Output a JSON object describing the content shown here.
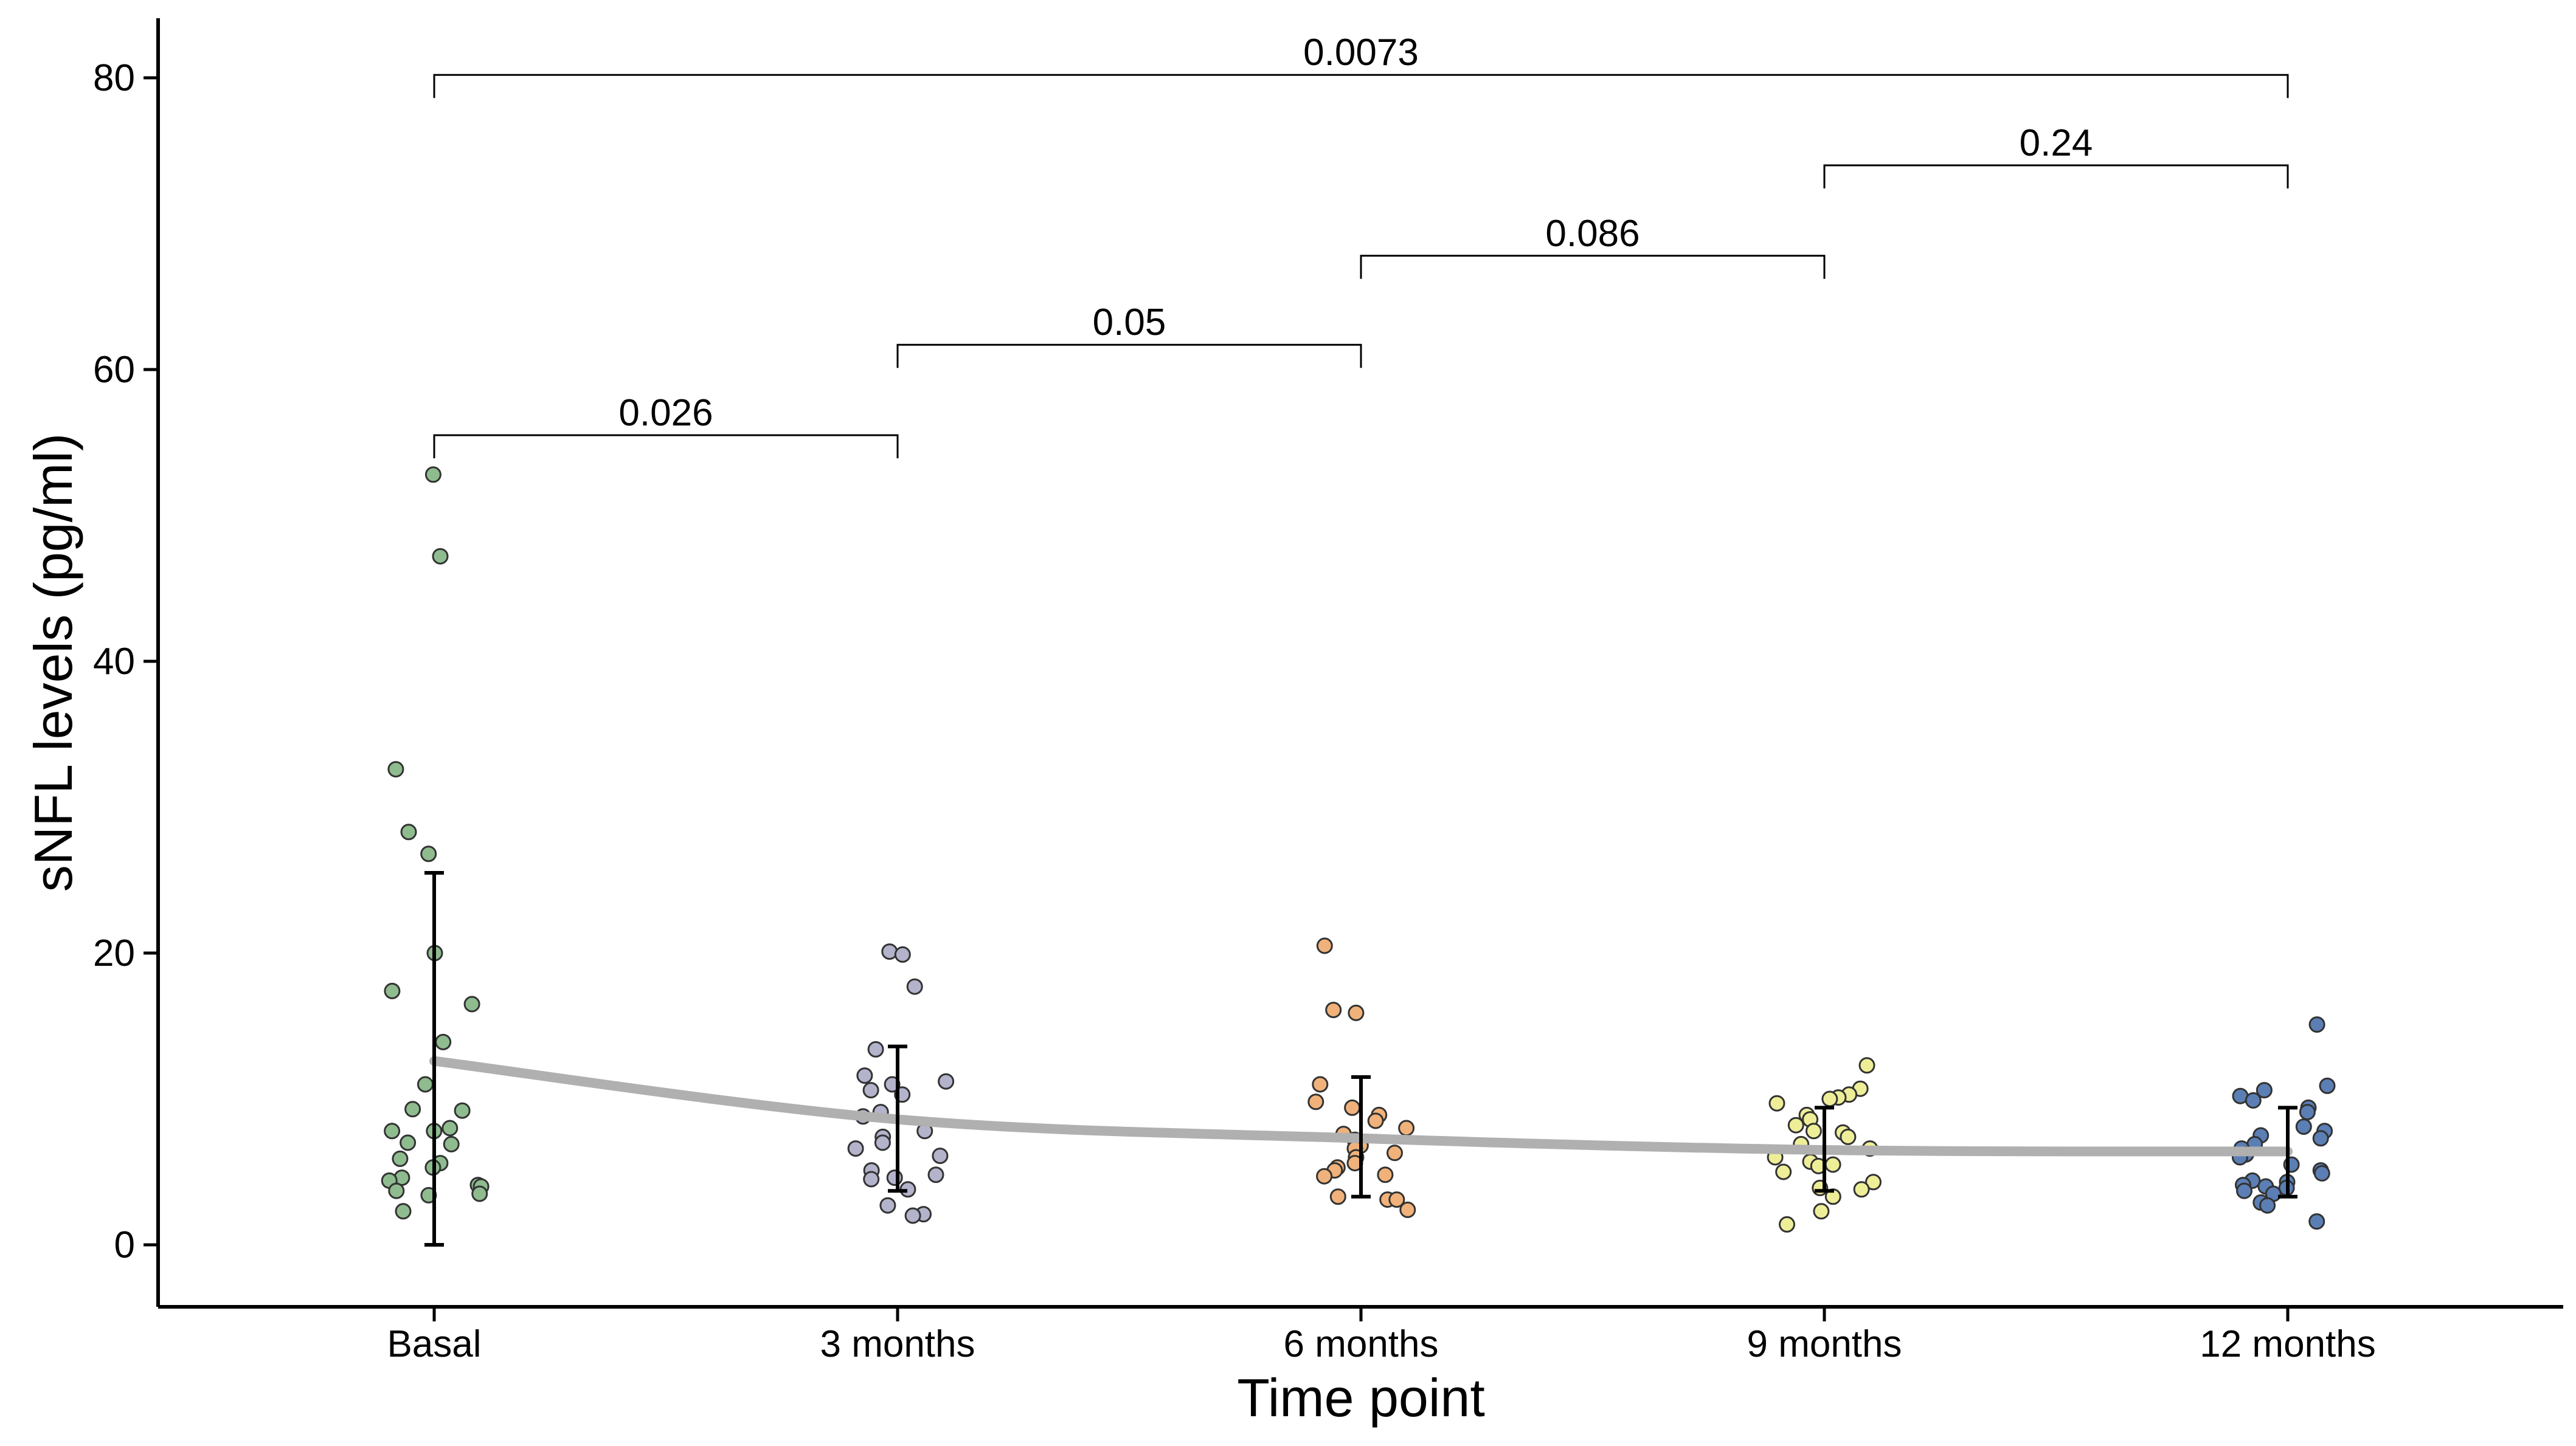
{
  "chart_data": {
    "type": "scatter",
    "title": "",
    "xlabel": "Time point",
    "ylabel": "sNFL levels (pg/ml)",
    "ylim": [
      -4,
      84
    ],
    "yticks": [
      0,
      20,
      40,
      60,
      80
    ],
    "categories": [
      "Basal",
      "3 months",
      "6 months",
      "9 months",
      "12 months"
    ],
    "colors": [
      "#8fbc8f",
      "#b3b3cc",
      "#f0b27a",
      "#eeee99",
      "#5b7fb5"
    ],
    "trend_color": "#b0b0b0",
    "trend": [
      12.6,
      8.6,
      7.3,
      6.5,
      6.4
    ],
    "error_bars": [
      {
        "low": 0.0,
        "high": 25.5
      },
      {
        "low": 3.7,
        "high": 13.6
      },
      {
        "low": 3.3,
        "high": 11.5
      },
      {
        "low": 3.7,
        "high": 9.4
      },
      {
        "low": 3.3,
        "high": 9.4
      }
    ],
    "points": [
      [
        52.8,
        47.2,
        32.6,
        28.3,
        26.8,
        20.0,
        17.4,
        16.5,
        13.9,
        11.0,
        9.3,
        9.2,
        8.0,
        7.8,
        7.8,
        7.0,
        6.9,
        5.9,
        5.6,
        5.3,
        4.6,
        4.4,
        4.1,
        4.0,
        3.7,
        3.4,
        3.5,
        2.3
      ],
      [
        20.1,
        19.9,
        17.7,
        13.4,
        11.6,
        11.2,
        11.0,
        10.6,
        10.3,
        9.1,
        8.8,
        7.8,
        7.4,
        7.0,
        6.6,
        6.1,
        5.1,
        4.8,
        4.6,
        4.5,
        3.8,
        2.7,
        2.1,
        2.0
      ],
      [
        20.5,
        16.1,
        15.9,
        11.0,
        9.8,
        9.4,
        8.9,
        8.5,
        8.0,
        7.6,
        7.2,
        6.8,
        6.6,
        6.3,
        6.0,
        5.6,
        5.3,
        5.1,
        4.8,
        4.7,
        3.3,
        3.1,
        3.1,
        2.4
      ],
      [
        12.3,
        10.7,
        10.3,
        10.1,
        10.0,
        9.7,
        8.9,
        8.6,
        8.2,
        7.8,
        7.7,
        7.4,
        6.9,
        6.6,
        6.0,
        5.7,
        5.5,
        5.4,
        5.0,
        4.3,
        3.9,
        3.8,
        3.3,
        2.3,
        1.4
      ],
      [
        15.1,
        10.9,
        10.6,
        10.2,
        9.9,
        9.4,
        9.1,
        8.1,
        7.8,
        7.5,
        7.3,
        6.9,
        6.6,
        6.2,
        6.0,
        5.5,
        5.1,
        4.9,
        4.4,
        4.3,
        4.1,
        4.0,
        3.9,
        3.7,
        3.5,
        2.9,
        2.7,
        1.6
      ]
    ],
    "comparisons": [
      {
        "from": 0,
        "to": 1,
        "y": 55.5,
        "label": "0.026"
      },
      {
        "from": 1,
        "to": 2,
        "y": 61.7,
        "label": "0.05"
      },
      {
        "from": 2,
        "to": 3,
        "y": 67.8,
        "label": "0.086"
      },
      {
        "from": 3,
        "to": 4,
        "y": 74.0,
        "label": "0.24"
      },
      {
        "from": 0,
        "to": 4,
        "y": 80.2,
        "label": "0.0073"
      }
    ]
  }
}
